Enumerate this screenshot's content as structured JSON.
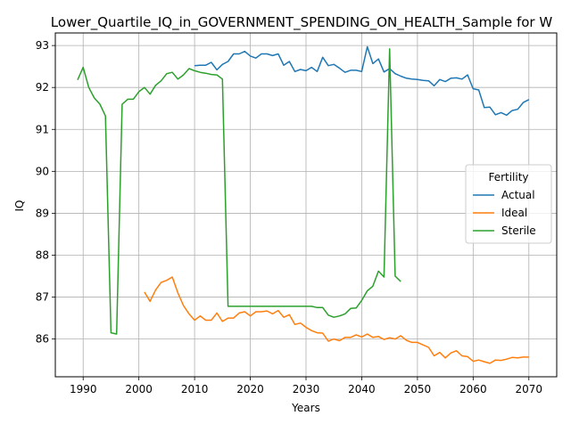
{
  "chart_data": {
    "type": "line",
    "title": "Lower_Quartile_IQ_in_GOVERNMENT_SPENDING_ON_HEALTH_Sample for W",
    "xlabel": "Years",
    "ylabel": "IQ",
    "xlim": [
      1985,
      2075
    ],
    "ylim": [
      85.1,
      93.3
    ],
    "xticks": [
      1990,
      2000,
      2010,
      2020,
      2030,
      2040,
      2050,
      2060,
      2070
    ],
    "yticks": [
      86,
      87,
      88,
      89,
      90,
      91,
      92,
      93
    ],
    "grid": true,
    "legend": {
      "title": "Fertility",
      "position": "center-right"
    },
    "series": [
      {
        "name": "Actual",
        "color": "#1f77b4",
        "x": [
          2010,
          2011,
          2012,
          2013,
          2014,
          2015,
          2016,
          2017,
          2018,
          2019,
          2020,
          2021,
          2022,
          2023,
          2024,
          2025,
          2026,
          2027,
          2028,
          2029,
          2030,
          2031,
          2032,
          2033,
          2034,
          2035,
          2036,
          2037,
          2038,
          2039,
          2040,
          2041,
          2042,
          2043,
          2044,
          2045,
          2046,
          2047,
          2048,
          2049,
          2050,
          2051,
          2052,
          2053,
          2054,
          2055,
          2056,
          2057,
          2058,
          2059,
          2060,
          2061,
          2062,
          2063,
          2064,
          2065,
          2066,
          2067,
          2068,
          2069,
          2070
        ],
        "y": [
          92.52,
          92.53,
          92.53,
          92.6,
          92.42,
          92.55,
          92.62,
          92.8,
          92.8,
          92.86,
          92.75,
          92.7,
          92.8,
          92.8,
          92.76,
          92.8,
          92.53,
          92.62,
          92.38,
          92.43,
          92.4,
          92.48,
          92.38,
          92.72,
          92.52,
          92.55,
          92.46,
          92.36,
          92.41,
          92.41,
          92.38,
          92.97,
          92.57,
          92.68,
          92.37,
          92.45,
          92.33,
          92.27,
          92.22,
          92.2,
          92.19,
          92.17,
          92.16,
          92.04,
          92.19,
          92.14,
          92.22,
          92.23,
          92.2,
          92.3,
          91.97,
          91.94,
          91.52,
          91.53,
          91.35,
          91.4,
          91.34,
          91.45,
          91.48,
          91.64,
          91.71
        ]
      },
      {
        "name": "Ideal",
        "color": "#ff7f0e",
        "x": [
          2001,
          2002,
          2003,
          2004,
          2005,
          2006,
          2007,
          2008,
          2009,
          2010,
          2011,
          2012,
          2013,
          2014,
          2015,
          2016,
          2017,
          2018,
          2019,
          2020,
          2021,
          2022,
          2023,
          2024,
          2025,
          2026,
          2027,
          2028,
          2029,
          2030,
          2031,
          2032,
          2033,
          2034,
          2035,
          2036,
          2037,
          2038,
          2039,
          2040,
          2041,
          2042,
          2043,
          2044,
          2045,
          2046,
          2047,
          2048,
          2049,
          2050,
          2051,
          2052,
          2053,
          2054,
          2055,
          2056,
          2057,
          2058,
          2059,
          2060,
          2061,
          2062,
          2063,
          2064,
          2065,
          2066,
          2067,
          2068,
          2069,
          2070
        ],
        "y": [
          87.12,
          86.9,
          87.17,
          87.35,
          87.4,
          87.48,
          87.1,
          86.8,
          86.6,
          86.45,
          86.55,
          86.45,
          86.45,
          86.62,
          86.42,
          86.5,
          86.5,
          86.62,
          86.65,
          86.55,
          86.65,
          86.65,
          86.67,
          86.6,
          86.68,
          86.52,
          86.58,
          86.35,
          86.38,
          86.28,
          86.2,
          86.15,
          86.14,
          85.95,
          86.0,
          85.96,
          86.04,
          86.04,
          86.1,
          86.05,
          86.12,
          86.04,
          86.06,
          85.99,
          86.03,
          86.0,
          86.08,
          85.97,
          85.92,
          85.92,
          85.86,
          85.8,
          85.6,
          85.68,
          85.55,
          85.67,
          85.72,
          85.6,
          85.58,
          85.47,
          85.5,
          85.46,
          85.42,
          85.5,
          85.49,
          85.52,
          85.56,
          85.55,
          85.57,
          85.57
        ]
      },
      {
        "name": "Sterile",
        "color": "#2ca02c",
        "x": [
          1989,
          1990,
          1991,
          1992,
          1993,
          1994,
          1995,
          1996,
          1997,
          1998,
          1999,
          2000,
          2001,
          2002,
          2003,
          2004,
          2005,
          2006,
          2007,
          2008,
          2009,
          2010,
          2011,
          2012,
          2013,
          2014,
          2015,
          2016,
          2017,
          2018,
          2019,
          2020,
          2021,
          2022,
          2023,
          2024,
          2025,
          2026,
          2027,
          2028,
          2029,
          2030,
          2031,
          2032,
          2033,
          2034,
          2035,
          2036,
          2037,
          2038,
          2039,
          2040,
          2041,
          2042,
          2043,
          2044,
          2045,
          2046,
          2047
        ],
        "y": [
          92.18,
          92.48,
          92.0,
          91.75,
          91.6,
          91.32,
          86.15,
          86.12,
          91.6,
          91.72,
          91.72,
          91.9,
          92.0,
          91.84,
          92.05,
          92.16,
          92.33,
          92.36,
          92.2,
          92.3,
          92.45,
          92.4,
          92.36,
          92.34,
          92.31,
          92.3,
          92.2,
          86.78,
          86.78,
          86.78,
          86.78,
          86.78,
          86.78,
          86.78,
          86.78,
          86.78,
          86.78,
          86.78,
          86.78,
          86.78,
          86.78,
          86.78,
          86.78,
          86.75,
          86.75,
          86.57,
          86.52,
          86.55,
          86.6,
          86.73,
          86.74,
          86.92,
          87.15,
          87.26,
          87.62,
          87.48,
          92.92,
          87.5,
          87.37
        ]
      }
    ]
  }
}
